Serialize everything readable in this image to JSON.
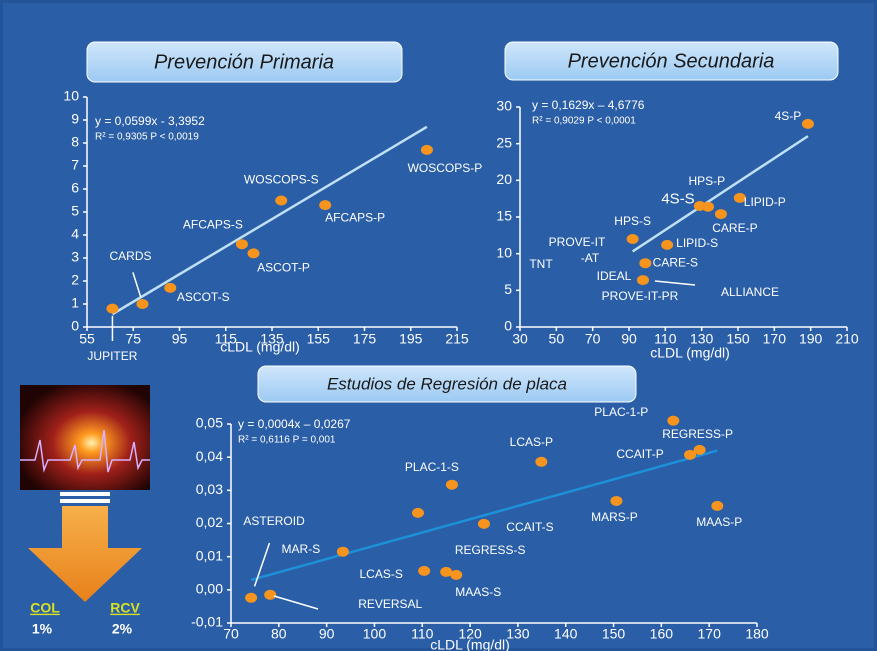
{
  "chart_data": [
    {
      "type": "scatter",
      "title": "Prevención Primaria",
      "xlabel": "cLDL (mg/dl)",
      "trendline": {
        "slope": 0.0599,
        "intercept": -3.3952,
        "label": "y = 0,0599x - 3,3952"
      },
      "r2_label": "R² = 0,9305 P < 0,0019",
      "xlim": [
        55,
        215
      ],
      "xticks": [
        55,
        75,
        95,
        115,
        135,
        155,
        175,
        195,
        215
      ],
      "ylim": [
        0,
        10
      ],
      "yticks": [
        0,
        1,
        2,
        3,
        4,
        5,
        6,
        7,
        8,
        9,
        10
      ],
      "series": [
        {
          "color": "#f7941d",
          "x": [
            66,
            79,
            91,
            122,
            127,
            139,
            158,
            202
          ],
          "values": [
            0.8,
            1.0,
            1.7,
            3.6,
            3.2,
            5.5,
            5.3,
            7.7
          ],
          "labels": [
            "JUPITER",
            "CARDS",
            "ASCOT-S",
            "AFCAPS-S",
            "ASCOT-P",
            "WOSCOPS-S",
            "AFCAPS-P",
            "WOSCOPS-P"
          ]
        }
      ],
      "annotations": []
    },
    {
      "type": "scatter",
      "title": "Prevención Secundaria",
      "xlabel": "cLDL (mg/dl)",
      "trendline": {
        "slope": 0.1629,
        "intercept": -4.6776,
        "label": "y = 0,1629x – 4,6776"
      },
      "r2_label": "R² = 0,9029 P < 0,0001",
      "xlim": [
        30,
        210
      ],
      "xticks": [
        30,
        50,
        70,
        90,
        110,
        130,
        150,
        170,
        190,
        210
      ],
      "ylim": [
        0,
        30
      ],
      "yticks": [
        0,
        5,
        10,
        15,
        20,
        25,
        30
      ],
      "series": [
        {
          "color": "#f7941d",
          "x": [
            188.5,
            151,
            129,
            133.5,
            140.6,
            92,
            111,
            99,
            97.7
          ],
          "values": [
            27.7,
            17.6,
            16.5,
            16.4,
            15.4,
            12.0,
            11.2,
            8.7,
            6.4
          ],
          "labels": [
            "4S-P",
            "LIPID-P",
            "HPS-P",
            "4S-S",
            "CARE-P",
            "HPS-S",
            "LIPID-S",
            "CARE-S",
            "IDEAL"
          ]
        }
      ],
      "annotations": [
        "TNT",
        "PROVE-IT",
        "-AT",
        "PROVE-IT-PR",
        "ALLIANCE"
      ]
    },
    {
      "type": "scatter",
      "title": "Estudios de Regresión de placa",
      "xlabel": "cLDL (mg/dl)",
      "trendline": {
        "slope": 0.0004,
        "intercept": -0.0267,
        "label": "y = 0,0004x – 0,0267"
      },
      "r2_label": "R² = 0,6116 P = 0,001",
      "xlim": [
        70,
        180
      ],
      "xticks": [
        70,
        80,
        90,
        100,
        110,
        120,
        130,
        140,
        150,
        160,
        170,
        180
      ],
      "ylim": [
        -0.01,
        0.05
      ],
      "yticks": [
        {
          "value": -0.01,
          "label": "-0,01"
        },
        {
          "value": 0,
          "label": "0,00"
        },
        {
          "value": 0.01,
          "label": "0,01"
        },
        {
          "value": 0.02,
          "label": "0,02"
        },
        {
          "value": 0.03,
          "label": "0,03"
        },
        {
          "value": 0.04,
          "label": "0,04"
        },
        {
          "value": 0.05,
          "label": "0,05"
        }
      ],
      "series": [
        {
          "color": "#f7941d",
          "x": [
            74.2,
            78.2,
            93.4,
            110.4,
            115,
            117.1,
            109.1,
            116.2,
            122.9,
            134.9,
            150.6,
            162.5,
            166,
            168,
            171.7
          ],
          "values": [
            -0.0024,
            -0.0015,
            0.0115,
            0.0057,
            0.0054,
            0.0045,
            0.0232,
            0.0317,
            0.0199,
            0.0386,
            0.0268,
            0.051,
            0.0407,
            0.0422,
            0.0253
          ],
          "labels": [
            "ASTEROID",
            "REVERSAL",
            "MAR-S",
            "LCAS-S",
            "REGRESS-S",
            "MAAS-S",
            null,
            "PLAC-1-S",
            "CCAIT-S",
            "LCAS-P",
            "MARS-P",
            "PLAC-1-P",
            "CCAIT-P",
            "REGRESS-P",
            "MAAS-P"
          ]
        }
      ],
      "annotations": []
    }
  ],
  "side_panel": {
    "col": "COL",
    "col_value": "1%",
    "rcv": "RCV",
    "rcv_value": "2%"
  }
}
